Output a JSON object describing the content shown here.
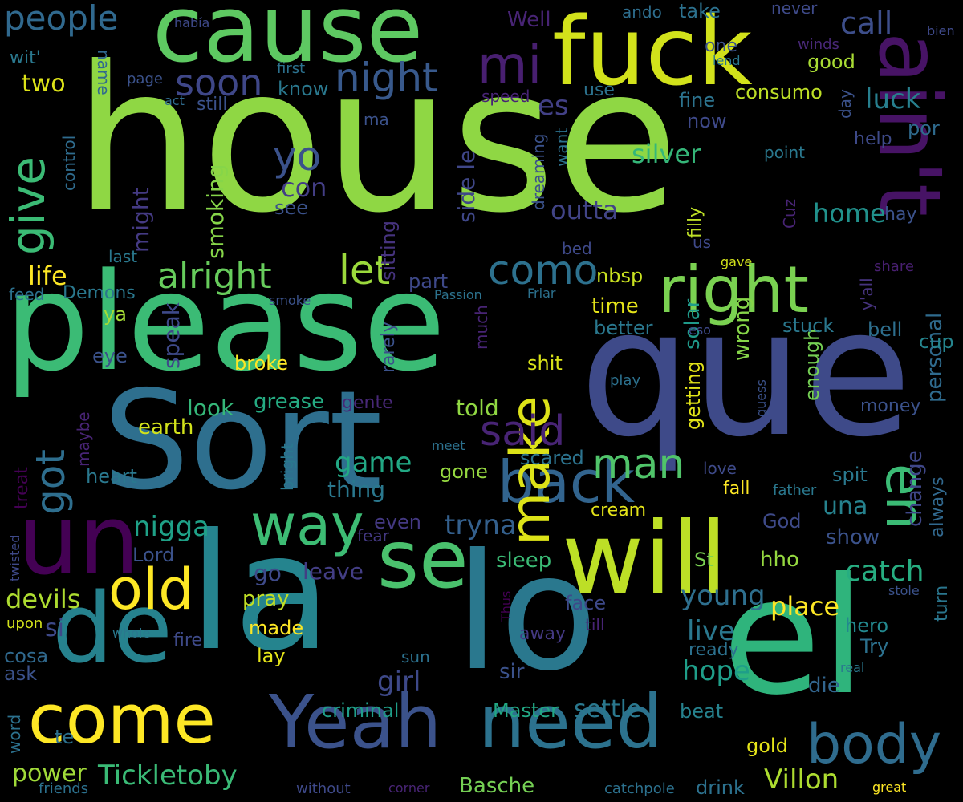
{
  "words": [
    {
      "text": "house",
      "color": "#8fd744"
    },
    {
      "text": "please",
      "color": "#3bbb75"
    },
    {
      "text": "que",
      "color": "#3e4a89"
    },
    {
      "text": "Sort",
      "color": "#2e6f8e"
    },
    {
      "text": "la",
      "color": "#25848e"
    },
    {
      "text": "lo",
      "color": "#2a788e"
    },
    {
      "text": "el",
      "color": "#2fb47c"
    },
    {
      "text": "cause",
      "color": "#5ec962"
    },
    {
      "text": "fuck",
      "color": "#d2e21b"
    },
    {
      "text": "will",
      "color": "#bddf26"
    },
    {
      "text": "de",
      "color": "#26828e"
    },
    {
      "text": "un",
      "color": "#440154"
    },
    {
      "text": "come",
      "color": "#fde725"
    },
    {
      "text": "Yeah",
      "color": "#3b528b"
    },
    {
      "text": "need",
      "color": "#2c728e"
    },
    {
      "text": "se",
      "color": "#4ac16d"
    },
    {
      "text": "ain't",
      "color": "#471365"
    },
    {
      "text": "right",
      "color": "#7ad151"
    },
    {
      "text": "back",
      "color": "#32648e"
    },
    {
      "text": "body",
      "color": "#2f6c8e"
    },
    {
      "text": "way",
      "color": "#3dbc74"
    },
    {
      "text": "make",
      "color": "#dde318"
    },
    {
      "text": "old",
      "color": "#fde725"
    },
    {
      "text": "en",
      "color": "#3bbb75"
    },
    {
      "text": "mi",
      "color": "#481f70"
    },
    {
      "text": "said",
      "color": "#482475"
    },
    {
      "text": "man",
      "color": "#50c46a"
    },
    {
      "text": "give",
      "color": "#3bbb75"
    },
    {
      "text": "got",
      "color": "#2e6e8e"
    },
    {
      "text": "soon",
      "color": "#3f4788"
    },
    {
      "text": "night",
      "color": "#38598c"
    },
    {
      "text": "let",
      "color": "#9bd93c"
    },
    {
      "text": "como",
      "color": "#2d718e"
    },
    {
      "text": "alright",
      "color": "#67cc5c"
    },
    {
      "text": "people",
      "color": "#30698e"
    },
    {
      "text": "call",
      "color": "#3d4e8a"
    },
    {
      "text": "yo",
      "color": "#3b528b"
    },
    {
      "text": "Tickletoby",
      "color": "#3aba76"
    },
    {
      "text": "Villon",
      "color": "#addc30"
    },
    {
      "text": "catch",
      "color": "#27ad81"
    },
    {
      "text": "young",
      "color": "#2e6f8e"
    },
    {
      "text": "nigga",
      "color": "#1fa187"
    },
    {
      "text": "tryna",
      "color": "#34608d"
    },
    {
      "text": "game",
      "color": "#22a884"
    },
    {
      "text": "devils",
      "color": "#addc30"
    },
    {
      "text": "place",
      "color": "#fde725"
    },
    {
      "text": "settle",
      "color": "#2a788e"
    },
    {
      "text": "girl",
      "color": "#3e4989"
    },
    {
      "text": "live",
      "color": "#2a788e"
    },
    {
      "text": "hope",
      "color": "#1f9e89"
    },
    {
      "text": "power",
      "color": "#a0da39"
    },
    {
      "text": "home",
      "color": "#21918c"
    },
    {
      "text": "silver",
      "color": "#35b779"
    },
    {
      "text": "outta",
      "color": "#414487"
    },
    {
      "text": "luck",
      "color": "#277f8e"
    },
    {
      "text": "es",
      "color": "#424086"
    },
    {
      "text": "life",
      "color": "#fde725"
    },
    {
      "text": "two",
      "color": "#dde318"
    },
    {
      "text": "speak",
      "color": "#3e4989"
    },
    {
      "text": "smoking",
      "color": "#86d549"
    },
    {
      "text": "might",
      "color": "#443a83"
    },
    {
      "text": "con",
      "color": "#433e85"
    },
    {
      "text": "see",
      "color": "#3b528b"
    },
    {
      "text": "side le",
      "color": "#3f4788"
    },
    {
      "text": "sitting",
      "color": "#46337e"
    },
    {
      "text": "look",
      "color": "#35b779"
    },
    {
      "text": "grease",
      "color": "#25ab82"
    },
    {
      "text": "earth",
      "color": "#d2e21b"
    },
    {
      "text": "told",
      "color": "#90d743"
    },
    {
      "text": "thing",
      "color": "#2a788e"
    },
    {
      "text": "heart",
      "color": "#2a788e"
    },
    {
      "text": "gone",
      "color": "#95d840"
    },
    {
      "text": "scared",
      "color": "#2c738e"
    },
    {
      "text": "sleep",
      "color": "#3bbb75"
    },
    {
      "text": "hho",
      "color": "#95d840"
    },
    {
      "text": "change",
      "color": "#3f4788"
    },
    {
      "text": "always",
      "color": "#31688e"
    },
    {
      "text": "personal",
      "color": "#2f6b8e"
    },
    {
      "text": "una",
      "color": "#26828e"
    },
    {
      "text": "getting",
      "color": "#e2e418"
    },
    {
      "text": "wrong",
      "color": "#86d549"
    },
    {
      "text": "solar",
      "color": "#1f9a8a"
    },
    {
      "text": "enough",
      "color": "#75d054"
    },
    {
      "text": "money",
      "color": "#3b528b"
    },
    {
      "text": "shit",
      "color": "#d8e219"
    },
    {
      "text": "broke",
      "color": "#fde725"
    },
    {
      "text": "eye",
      "color": "#3b528b"
    },
    {
      "text": "rarely",
      "color": "#3b528b"
    },
    {
      "text": "pray",
      "color": "#c0df25"
    },
    {
      "text": "made",
      "color": "#fde725"
    },
    {
      "text": "lay",
      "color": "#e5e419"
    },
    {
      "text": "leave",
      "color": "#433e85"
    },
    {
      "text": "go",
      "color": "#3e4a89"
    },
    {
      "text": "even",
      "color": "#443983"
    },
    {
      "text": "Lord",
      "color": "#3b528b"
    },
    {
      "text": "si",
      "color": "#3e4989"
    },
    {
      "text": "criminal",
      "color": "#1f9e89"
    },
    {
      "text": "Master",
      "color": "#22a884"
    },
    {
      "text": "beat",
      "color": "#26828e"
    },
    {
      "text": "die",
      "color": "#32658e"
    },
    {
      "text": "show",
      "color": "#3b528b"
    },
    {
      "text": "God",
      "color": "#3e4a89"
    },
    {
      "text": "St",
      "color": "#7ad151"
    },
    {
      "text": "hero",
      "color": "#23888e"
    },
    {
      "text": "Try",
      "color": "#2c718e"
    },
    {
      "text": "turn",
      "color": "#2a768e"
    },
    {
      "text": "cup",
      "color": "#25858e"
    },
    {
      "text": "bell",
      "color": "#2e6f8e"
    },
    {
      "text": "stuck",
      "color": "#2a788e"
    },
    {
      "text": "better",
      "color": "#2a788e"
    },
    {
      "text": "time",
      "color": "#e5e419"
    },
    {
      "text": "nbsp",
      "color": "#c8e020"
    },
    {
      "text": "part",
      "color": "#3e4989"
    },
    {
      "text": "ya",
      "color": "#a5db36"
    },
    {
      "text": "por",
      "color": "#2f6b8e"
    },
    {
      "text": "help",
      "color": "#3e4a89"
    },
    {
      "text": "hay",
      "color": "#3b528b"
    },
    {
      "text": "fine",
      "color": "#2c738e"
    },
    {
      "text": "consumo",
      "color": "#bddf26"
    },
    {
      "text": "now",
      "color": "#3e4989"
    },
    {
      "text": "take",
      "color": "#2c718e"
    },
    {
      "text": "good",
      "color": "#a8db34"
    },
    {
      "text": "one",
      "color": "#3b528b"
    },
    {
      "text": "lend",
      "color": "#2a788e"
    },
    {
      "text": "never",
      "color": "#3e4a89"
    },
    {
      "text": "winds",
      "color": "#482878"
    },
    {
      "text": "bien",
      "color": "#3e4989"
    },
    {
      "text": "ando",
      "color": "#2e6e8e"
    },
    {
      "text": "Well",
      "color": "#482475"
    },
    {
      "text": "había",
      "color": "#3e4989"
    },
    {
      "text": "wit'",
      "color": "#2a788e"
    },
    {
      "text": "name",
      "color": "#30698e"
    },
    {
      "text": "page",
      "color": "#3b528b"
    },
    {
      "text": "first",
      "color": "#2c718e"
    },
    {
      "text": "know",
      "color": "#2a788e"
    },
    {
      "text": "still",
      "color": "#3b528b"
    },
    {
      "text": "act",
      "color": "#2f6c8e"
    },
    {
      "text": "control",
      "color": "#2f6c8e"
    },
    {
      "text": "ma",
      "color": "#3b528b"
    },
    {
      "text": "speed",
      "color": "#482475"
    },
    {
      "text": "use",
      "color": "#2c728e"
    },
    {
      "text": "day",
      "color": "#3b528b"
    },
    {
      "text": "dreaming",
      "color": "#3b528b"
    },
    {
      "text": "want",
      "color": "#2c718e"
    },
    {
      "text": "point",
      "color": "#2a788e"
    },
    {
      "text": "filly",
      "color": "#bddf26"
    },
    {
      "text": "Cuz",
      "color": "#482475"
    },
    {
      "text": "bed",
      "color": "#3e4989"
    },
    {
      "text": "us",
      "color": "#3e4989"
    },
    {
      "text": "gave",
      "color": "#d2e21b"
    },
    {
      "text": "share",
      "color": "#481f70"
    },
    {
      "text": "y'all",
      "color": "#46337e"
    },
    {
      "text": "last",
      "color": "#2a788e"
    },
    {
      "text": "feed",
      "color": "#2c718e"
    },
    {
      "text": "Demons",
      "color": "#2a788e"
    },
    {
      "text": "smoke",
      "color": "#3b528b"
    },
    {
      "text": "Passion",
      "color": "#2c728e"
    },
    {
      "text": "Friar",
      "color": "#2c718e"
    },
    {
      "text": "eso",
      "color": "#3e4989"
    },
    {
      "text": "much",
      "color": "#482475"
    },
    {
      "text": "play",
      "color": "#2c718e"
    },
    {
      "text": "guess",
      "color": "#3b528b"
    },
    {
      "text": "gente",
      "color": "#482878"
    },
    {
      "text": "maybe",
      "color": "#482475"
    },
    {
      "text": "treat",
      "color": "#440154"
    },
    {
      "text": "bright",
      "color": "#2a788e"
    },
    {
      "text": "meet",
      "color": "#2c718e"
    },
    {
      "text": "love",
      "color": "#3e4a89"
    },
    {
      "text": "father",
      "color": "#2a788e"
    },
    {
      "text": "fall",
      "color": "#fde725"
    },
    {
      "text": "spit",
      "color": "#2a788e"
    },
    {
      "text": "cream",
      "color": "#e5e419"
    },
    {
      "text": "fear",
      "color": "#443983"
    },
    {
      "text": "twisted",
      "color": "#3e4989"
    },
    {
      "text": "face",
      "color": "#3e4989"
    },
    {
      "text": "till",
      "color": "#482475"
    },
    {
      "text": "Thus",
      "color": "#440154"
    },
    {
      "text": "away",
      "color": "#443983"
    },
    {
      "text": "upon",
      "color": "#d2e21b"
    },
    {
      "text": "whole",
      "color": "#2a788e"
    },
    {
      "text": "fire",
      "color": "#3e4a89"
    },
    {
      "text": "sun",
      "color": "#2c718e"
    },
    {
      "text": "sir",
      "color": "#3b528b"
    },
    {
      "text": "ready",
      "color": "#2c718e"
    },
    {
      "text": "stole",
      "color": "#3b528b"
    },
    {
      "text": "real",
      "color": "#2a788e"
    },
    {
      "text": "cosa",
      "color": "#30698e"
    },
    {
      "text": "ask",
      "color": "#3b528b"
    },
    {
      "text": "word",
      "color": "#2c718e"
    },
    {
      "text": "te",
      "color": "#2c718e"
    },
    {
      "text": "gold",
      "color": "#e5e419"
    },
    {
      "text": "friends",
      "color": "#2c718e"
    },
    {
      "text": "without",
      "color": "#3e4989"
    },
    {
      "text": "corner",
      "color": "#482475"
    },
    {
      "text": "Basche",
      "color": "#75d054"
    },
    {
      "text": "catchpole",
      "color": "#2c718e"
    },
    {
      "text": "drink",
      "color": "#2c718e"
    },
    {
      "text": "great",
      "color": "#fde725"
    }
  ]
}
